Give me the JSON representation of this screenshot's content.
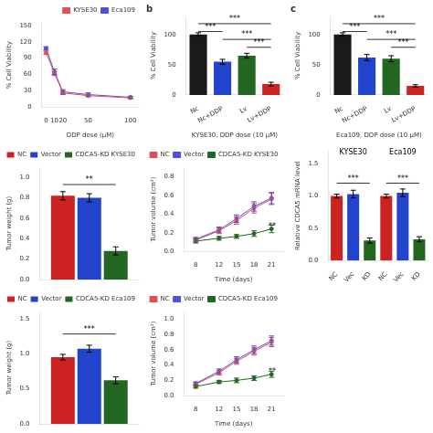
{
  "chart_data": [
    {
      "type": "line",
      "x": [
        0,
        10,
        20,
        50,
        100
      ],
      "xlabel": "DDP dose (μM)",
      "ylabel": "% Cell Viability",
      "xlim": [
        -5,
        110
      ],
      "ylim": [
        0,
        155
      ],
      "xticks": [
        0,
        10,
        20,
        50,
        100
      ],
      "yticks": [
        0,
        30,
        60,
        90,
        120,
        150
      ],
      "grid": false,
      "legend": "upper right",
      "series": [
        {
          "name": "KYSE30",
          "color": "#e05050",
          "marker": "circle",
          "values": [
            100,
            62,
            26,
            21,
            17
          ],
          "errors": [
            3,
            4,
            3,
            2,
            2
          ]
        },
        {
          "name": "Eca109",
          "color": "#5050e0",
          "marker": "circle",
          "values": [
            108,
            65,
            28,
            23,
            18
          ],
          "errors": [
            3,
            5,
            4,
            3,
            2
          ]
        }
      ]
    },
    {
      "type": "bar",
      "title": "b",
      "categories": [
        "Nc",
        "Nc+DDP",
        "Lv",
        "Lv+DDP"
      ],
      "values": [
        100,
        55,
        65,
        18
      ],
      "errors": [
        3,
        4,
        4,
        3
      ],
      "colors": [
        "#1a1a1a",
        "#2244cc",
        "#226622",
        "#cc2222"
      ],
      "xlabel": "KYSE30, DDP dose (10 μM)",
      "ylabel": "% Cell Viability",
      "ylim": [
        0,
        130
      ],
      "yticks": [
        0,
        50,
        100
      ],
      "grid": false,
      "annotations": [
        {
          "text": "***",
          "x1": 0,
          "x2": 3,
          "y": 118
        },
        {
          "text": "***",
          "x1": 0,
          "x2": 1,
          "y": 105
        },
        {
          "text": "***",
          "x1": 1,
          "x2": 3,
          "y": 92
        },
        {
          "text": "***",
          "x1": 2,
          "x2": 3,
          "y": 79
        }
      ]
    },
    {
      "type": "bar",
      "title": "c",
      "categories": [
        "Nc",
        "Nc+DDP",
        "Lv",
        "Lv+DDP"
      ],
      "values": [
        100,
        62,
        60,
        15
      ],
      "errors": [
        3,
        5,
        5,
        2
      ],
      "colors": [
        "#1a1a1a",
        "#2244cc",
        "#226622",
        "#cc2222"
      ],
      "xlabel": "Eca109, DDP dose (10 μM)",
      "ylabel": "% Cell Viability",
      "ylim": [
        0,
        130
      ],
      "yticks": [
        0,
        50,
        100
      ],
      "grid": false,
      "annotations": [
        {
          "text": "***",
          "x1": 0,
          "x2": 3,
          "y": 118
        },
        {
          "text": "***",
          "x1": 0,
          "x2": 1,
          "y": 105
        },
        {
          "text": "***",
          "x1": 1,
          "x2": 3,
          "y": 92
        },
        {
          "text": "***",
          "x1": 2,
          "x2": 3,
          "y": 79
        }
      ]
    },
    {
      "type": "bar",
      "categories": [
        null
      ],
      "series": [
        {
          "name": "NC",
          "color": "#cc2222",
          "values": [
            0.82
          ],
          "errors": [
            0.04
          ]
        },
        {
          "name": "Vector",
          "color": "#2244cc",
          "values": [
            0.8
          ],
          "errors": [
            0.04
          ]
        },
        {
          "name": "CDCA5-KD KYSE30",
          "color": "#226622",
          "values": [
            0.28
          ],
          "errors": [
            0.04
          ]
        }
      ],
      "ylabel": "Tumor weight (g)",
      "ylim": [
        0,
        1.1
      ],
      "yticks": [
        {
          "value": 0,
          "label": "0.0"
        },
        0.2,
        0.4,
        0.6,
        0.8,
        {
          "value": 1,
          "label": "1.0"
        }
      ],
      "tick_labels": "y",
      "grid": false,
      "legend": "upper right",
      "annotations": [
        {
          "text": "**",
          "x1": 0,
          "x2": 2,
          "y": 0.93
        }
      ]
    },
    {
      "type": "bar",
      "categories": [
        null
      ],
      "series": [
        {
          "name": "NC",
          "color": "#cc2222",
          "values": [
            0.95
          ],
          "errors": [
            0.04
          ]
        },
        {
          "name": "Vector",
          "color": "#2244cc",
          "values": [
            1.07
          ],
          "errors": [
            0.05
          ]
        },
        {
          "name": "CDCA5-KD Eca109",
          "color": "#226622",
          "values": [
            0.62
          ],
          "errors": [
            0.05
          ]
        }
      ],
      "ylabel": "Tumor weight (g)",
      "ylim": [
        0,
        1.6
      ],
      "yticks": [
        {
          "value": 0,
          "label": "0.0"
        },
        0.5,
        {
          "value": 1,
          "label": "1.0"
        },
        1.5
      ],
      "tick_labels": "y",
      "grid": false,
      "legend": "upper right",
      "annotations": [
        {
          "text": "***",
          "x1": 0,
          "x2": 2,
          "y": 1.28
        }
      ]
    },
    {
      "type": "line",
      "x": [
        8,
        12,
        15,
        18,
        21
      ],
      "xlabel": "Time (days)",
      "ylabel": "Tumor volume (cm³)",
      "xlim": [
        6,
        23
      ],
      "ylim": [
        0.0,
        0.9
      ],
      "xticks": [
        8,
        12,
        15,
        18,
        21
      ],
      "yticks": [
        {
          "value": 0,
          "label": "0.0"
        },
        0.2,
        0.4,
        0.6,
        0.8
      ],
      "grid": false,
      "legend": "upper left",
      "series": [
        {
          "name": "NC",
          "color": "#e05050",
          "marker": "circle",
          "values": [
            0.12,
            0.22,
            0.33,
            0.46,
            0.56
          ],
          "errors": [
            0.02,
            0.03,
            0.04,
            0.05,
            0.06
          ]
        },
        {
          "name": "Vector",
          "color": "#5050e0",
          "marker": "circle",
          "values": [
            0.13,
            0.23,
            0.35,
            0.48,
            0.57
          ],
          "errors": [
            0.02,
            0.03,
            0.04,
            0.05,
            0.06
          ]
        },
        {
          "name": "CDCA5-KD KYSE30",
          "color": "#226622",
          "marker": "circle",
          "values": [
            0.11,
            0.14,
            0.16,
            0.19,
            0.24
          ],
          "errors": [
            0.02,
            0.02,
            0.02,
            0.03,
            0.04
          ]
        }
      ],
      "annotations": [
        {
          "text": "**",
          "x": 20.5,
          "y": 0.23
        }
      ]
    },
    {
      "type": "line",
      "x": [
        8,
        12,
        15,
        18,
        21
      ],
      "xlabel": "Time (days)",
      "ylabel": "Tumor volume (cm³)",
      "xlim": [
        6,
        23
      ],
      "ylim": [
        0.0,
        1.1
      ],
      "xticks": [
        8,
        12,
        15,
        18,
        21
      ],
      "yticks": [
        {
          "value": 0,
          "label": "0.0"
        },
        0.2,
        0.4,
        0.6,
        0.8,
        {
          "value": 1,
          "label": "1.0"
        }
      ],
      "grid": false,
      "legend": "upper left",
      "series": [
        {
          "name": "NC",
          "color": "#e05050",
          "marker": "circle",
          "values": [
            0.15,
            0.3,
            0.45,
            0.58,
            0.7
          ],
          "errors": [
            0.02,
            0.03,
            0.04,
            0.05,
            0.06
          ]
        },
        {
          "name": "Vector",
          "color": "#5050e0",
          "marker": "circle",
          "values": [
            0.16,
            0.32,
            0.47,
            0.6,
            0.72
          ],
          "errors": [
            0.02,
            0.03,
            0.04,
            0.05,
            0.06
          ]
        },
        {
          "name": "CDCA5-KD Eca109",
          "color": "#226622",
          "marker": "circle",
          "values": [
            0.12,
            0.18,
            0.2,
            0.23,
            0.28
          ],
          "errors": [
            0.02,
            0.02,
            0.03,
            0.03,
            0.04
          ]
        }
      ],
      "annotations": [
        {
          "text": "**",
          "x": 20.5,
          "y": 0.27
        }
      ]
    },
    {
      "type": "bar",
      "categories": [
        "NC",
        "Vec",
        "KD",
        "NC",
        "Vec",
        "KD"
      ],
      "values": [
        1.0,
        1.03,
        0.31,
        1.0,
        1.05,
        0.33
      ],
      "errors": [
        0.03,
        0.06,
        0.04,
        0.03,
        0.06,
        0.04
      ],
      "colors": [
        "#cc2222",
        "#2244cc",
        "#226622",
        "#cc2222",
        "#2244cc",
        "#226622"
      ],
      "ylabel": "Relative CDCA5 mRNA level",
      "ylim": [
        0,
        1.7
      ],
      "yticks": [
        {
          "value": 0,
          "label": "0.0"
        },
        0.5,
        {
          "value": 1,
          "label": "1.0"
        },
        1.5
      ],
      "grid": false,
      "annotations": [
        {
          "text": "KYSE30",
          "x": 1,
          "y": 1.62
        },
        {
          "text": "Eca109",
          "x": 4,
          "y": 1.62
        },
        {
          "text": "***",
          "x1": 0,
          "x2": 2,
          "y": 1.2
        },
        {
          "text": "***",
          "x1": 3,
          "x2": 5,
          "y": 1.2
        }
      ]
    }
  ]
}
